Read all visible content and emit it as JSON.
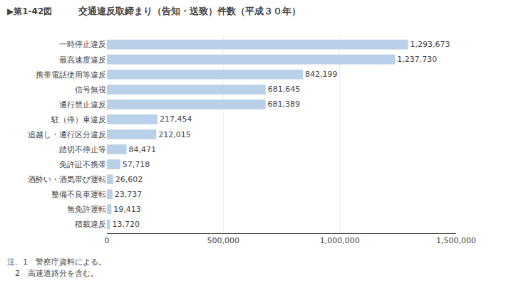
{
  "chart_data": {
    "type": "bar",
    "orientation": "horizontal",
    "title": "交通違反取締まり（告知・送致）件数（平成３０年）",
    "annotations": [
      "▶第1-42図",
      "注、1　警察庁資料による。",
      "　2　高速道路分を含む。"
    ],
    "categories": [
      "積載違反",
      "無免許運転",
      "整備不良車運転",
      "酒酔い・酒気帯び運転",
      "免許証不携帯",
      "踏切不停止等",
      "追越し・通行区分違反",
      "駐（停）車違反",
      "通行禁止違反",
      "信号無視",
      "携帯電話使用等違反",
      "最高速度違反",
      "一時停止違反"
    ],
    "values": [
      13720,
      19413,
      23737,
      26602,
      57718,
      84471,
      212015,
      217454,
      681389,
      681645,
      842199,
      1237730,
      1293673
    ],
    "value_labels": [
      "13,720",
      "19,413",
      "23,737",
      "26,602",
      "57,718",
      "84,471",
      "212,015",
      "217,454",
      "681,389",
      "681,645",
      "842,199",
      "1,237,730",
      "1,293,673"
    ],
    "data_labels": true,
    "color": "#b8d0e8",
    "xlim": [
      0,
      1500000
    ],
    "xticks": [
      0,
      {
        "value": 500000,
        "label": "500,000"
      },
      {
        "value": 1000000,
        "label": "1,000,000"
      },
      {
        "value": 1500000,
        "label": "1,500,000"
      }
    ],
    "grid": true
  }
}
